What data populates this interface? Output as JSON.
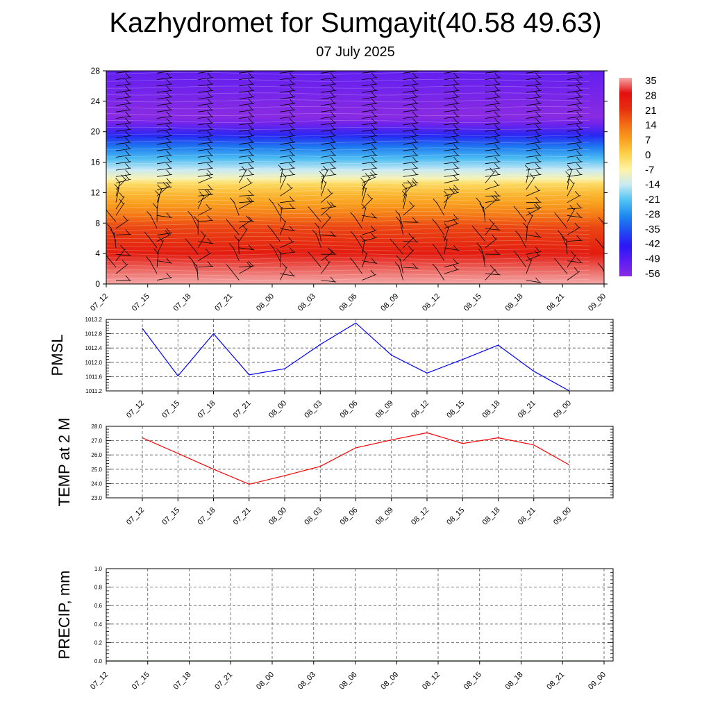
{
  "header": {
    "title": "Kazhydromet for Sumgayit(40.58 49.63)",
    "subtitle": "07 July 2025"
  },
  "chart_data": [
    {
      "id": "temp-wind-section",
      "type": "heatmap",
      "yticks": [
        "0",
        "4",
        "8",
        "12",
        "16",
        "20",
        "24",
        "28"
      ],
      "ylim": [
        0,
        28
      ],
      "xticks": [
        "07_12",
        "07_15",
        "07_18",
        "07_21",
        "08_00",
        "08_03",
        "08_06",
        "08_09",
        "08_12",
        "08_15",
        "08_18",
        "08_21",
        "09_00"
      ],
      "colorbar_labels": [
        "35",
        "28",
        "21",
        "14",
        "7",
        "0",
        "-7",
        "-14",
        "-21",
        "-28",
        "-35",
        "-42",
        "-49",
        "-56"
      ],
      "colorbar_colors": [
        "#f4a8a8",
        "#e21010",
        "#e52d10",
        "#f26a14",
        "#f99e1d",
        "#fcd24a",
        "#fff3a6",
        "#c9eaf4",
        "#52c3f2",
        "#1e8bf0",
        "#1f4ef0",
        "#2b17f3",
        "#5b1df2",
        "#8a2be2"
      ],
      "colors": {
        "levels_value": [
          35,
          25,
          18,
          12,
          7,
          3,
          -2,
          -8,
          -14,
          -22,
          -30,
          -40,
          -52,
          -58,
          -50
        ],
        "levels_height": [
          0,
          4,
          7.5,
          9,
          10.5,
          12,
          13.2,
          13.8,
          15,
          16.5,
          18,
          19.5,
          21,
          22,
          28
        ]
      }
    },
    {
      "id": "pmsl",
      "type": "line",
      "ylabel": "PMSL",
      "x": [
        "07_12",
        "07_15",
        "07_18",
        "07_21",
        "08_00",
        "08_03",
        "08_06",
        "08_09",
        "08_12",
        "08_15",
        "08_18",
        "08_21",
        "09_00"
      ],
      "xticks": [
        "07_12",
        "07_15",
        "07_18",
        "07_21",
        "08_00",
        "08_03",
        "08_06",
        "08_09",
        "08_12",
        "08_15",
        "08_18",
        "08_21",
        "09_00"
      ],
      "values": [
        1012.95,
        1011.62,
        1012.8,
        1011.65,
        1011.82,
        1012.5,
        1013.1,
        1012.2,
        1011.7,
        1012.08,
        1012.48,
        1011.75,
        1011.2
      ],
      "yticks": [
        "1011.2",
        "1011.6",
        "1012.0",
        "1012.4",
        "1012.8",
        "1013.2"
      ],
      "ylim": [
        1011.2,
        1013.2
      ],
      "color": "#0000ff",
      "grid": true
    },
    {
      "id": "temp2m",
      "type": "line",
      "ylabel": "TEMP at 2 M",
      "x": [
        "07_12",
        "07_15",
        "07_18",
        "07_21",
        "08_00",
        "08_03",
        "08_06",
        "08_09",
        "08_12",
        "08_15",
        "08_18",
        "08_21",
        "09_00"
      ],
      "xticks": [
        "07_12",
        "07_15",
        "07_18",
        "07_21",
        "08_00",
        "08_03",
        "08_06",
        "08_09",
        "08_12",
        "08_15",
        "08_18",
        "08_21",
        "09_00"
      ],
      "values": [
        27.2,
        26.1,
        25.0,
        23.95,
        24.55,
        25.2,
        26.5,
        27.05,
        27.55,
        26.8,
        27.2,
        26.7,
        25.3
      ],
      "yticks": [
        "23.0",
        "24.0",
        "25.0",
        "26.0",
        "27.0",
        "28.0"
      ],
      "ylim": [
        23.0,
        28.0
      ],
      "color": "#ff0000",
      "grid": true
    },
    {
      "id": "precip",
      "type": "line",
      "ylabel": "PRECIP, mm",
      "x": [
        "07_12",
        "07_15",
        "07_18",
        "07_21",
        "08_00",
        "08_03",
        "08_06",
        "08_09",
        "08_12",
        "08_15",
        "08_18",
        "08_21",
        "09_00"
      ],
      "xticks": [
        "07_12",
        "07_15",
        "07_18",
        "07_21",
        "08_00",
        "08_03",
        "08_06",
        "08_09",
        "08_12",
        "08_15",
        "08_18",
        "08_21",
        "09_00"
      ],
      "values": [
        0,
        0,
        0,
        0,
        0,
        0,
        0,
        0,
        0,
        0,
        0,
        0,
        0
      ],
      "yticks": [
        "0.0",
        "0.2",
        "0.4",
        "0.6",
        "0.8",
        "1.0"
      ],
      "ylim": [
        0.0,
        1.0
      ],
      "color": "#006400",
      "grid": true
    }
  ]
}
